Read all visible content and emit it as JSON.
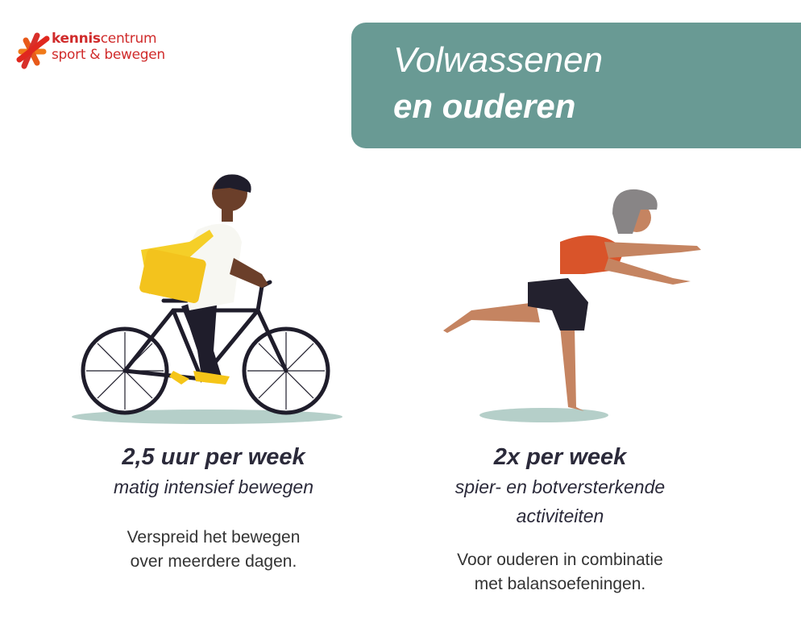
{
  "logo": {
    "brand_bold": "kennis",
    "brand_rest": "centrum",
    "line2": "sport & bewegen"
  },
  "banner": {
    "line1": "Volwassenen",
    "line2": "en ouderen",
    "color": "#699a94"
  },
  "left": {
    "heading": "2,5 uur per week",
    "subheading": "matig intensief bewegen",
    "body": [
      "Verspreid het bewegen",
      "over meerdere dagen."
    ],
    "illustration": "cyclist-illustration"
  },
  "right": {
    "heading": "2x per week",
    "subheading": [
      "spier- en botversterkende",
      "activiteiten"
    ],
    "body": [
      "Voor ouderen in combinatie",
      "met balansoefeningen."
    ],
    "illustration": "balancing-woman-illustration"
  }
}
